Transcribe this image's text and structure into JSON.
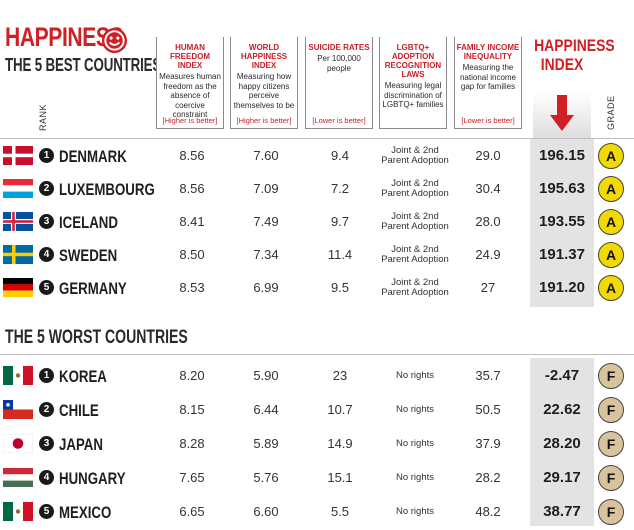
{
  "header": {
    "title": "HAPPINESS",
    "subtitle": "THE 5 BEST COUNTRIES",
    "index_title_line1": "HAPPINESS",
    "index_title_line2": "INDEX",
    "rank_label": "RANK",
    "grade_label": "GRADE"
  },
  "columns": [
    {
      "title": "HUMAN FREEDOM INDEX",
      "desc": "Measures human freedom as the absence of coercive constraint",
      "note": "[Higher is better]"
    },
    {
      "title": "WORLD HAPPINESS INDEX",
      "desc": "Measuring how happy citizens perceive themselves to be",
      "note": "[Higher is better]"
    },
    {
      "title": "SUICIDE RATES",
      "desc": "Per 100,000 people",
      "note": "[Lower is better]"
    },
    {
      "title": "LGBTQ+ ADOPTION RECOGNITION LAWS",
      "desc": "Measuring legal discrimination of LGBTQ+ families",
      "note": ""
    },
    {
      "title": "FAMILY INCOME INEQUALITY",
      "desc": "Measuring the national income gap for families",
      "note": "[Lower is better]"
    }
  ],
  "worst_title": "THE 5 WORST COUNTRIES",
  "best": [
    {
      "rank": "1",
      "country": "DENMARK",
      "freedom": "8.56",
      "happiness": "7.60",
      "suicide": "9.4",
      "adopt1": "Joint & 2nd",
      "adopt2": "Parent Adoption",
      "income": "29.0",
      "index": "196.15",
      "grade": "A"
    },
    {
      "rank": "2",
      "country": "LUXEMBOURG",
      "freedom": "8.56",
      "happiness": "7.09",
      "suicide": "7.2",
      "adopt1": "Joint & 2nd",
      "adopt2": "Parent Adoption",
      "income": "30.4",
      "index": "195.63",
      "grade": "A"
    },
    {
      "rank": "3",
      "country": "ICELAND",
      "freedom": "8.41",
      "happiness": "7.49",
      "suicide": "9.7",
      "adopt1": "Joint & 2nd",
      "adopt2": "Parent Adoption",
      "income": "28.0",
      "index": "193.55",
      "grade": "A"
    },
    {
      "rank": "4",
      "country": "SWEDEN",
      "freedom": "8.50",
      "happiness": "7.34",
      "suicide": "11.4",
      "adopt1": "Joint & 2nd",
      "adopt2": "Parent Adoption",
      "income": "24.9",
      "index": "191.37",
      "grade": "A"
    },
    {
      "rank": "5",
      "country": "GERMANY",
      "freedom": "8.53",
      "happiness": "6.99",
      "suicide": "9.5",
      "adopt1": "Joint & 2nd",
      "adopt2": "Parent Adoption",
      "income": "27",
      "index": "191.20",
      "grade": "A"
    }
  ],
  "worst": [
    {
      "rank": "1",
      "country": "KOREA",
      "freedom": "8.20",
      "happiness": "5.90",
      "suicide": "23",
      "adopt1": "No rights",
      "income": "35.7",
      "index": "-2.47",
      "grade": "F"
    },
    {
      "rank": "2",
      "country": "CHILE",
      "freedom": "8.15",
      "happiness": "6.44",
      "suicide": "10.7",
      "adopt1": "No rights",
      "income": "50.5",
      "index": "22.62",
      "grade": "F"
    },
    {
      "rank": "3",
      "country": "JAPAN",
      "freedom": "8.28",
      "happiness": "5.89",
      "suicide": "14.9",
      "adopt1": "No rights",
      "income": "37.9",
      "index": "28.20",
      "grade": "F"
    },
    {
      "rank": "4",
      "country": "HUNGARY",
      "freedom": "7.65",
      "happiness": "5.76",
      "suicide": "15.1",
      "adopt1": "No rights",
      "income": "28.2",
      "index": "29.17",
      "grade": "F"
    },
    {
      "rank": "5",
      "country": "MEXICO",
      "freedom": "6.65",
      "happiness": "6.60",
      "suicide": "5.5",
      "adopt1": "No rights",
      "income": "48.2",
      "index": "38.77",
      "grade": "F"
    }
  ],
  "colors": {
    "accent": "#d01f25",
    "gradeA": "#f2d900",
    "gradeF": "#d8c39c"
  }
}
